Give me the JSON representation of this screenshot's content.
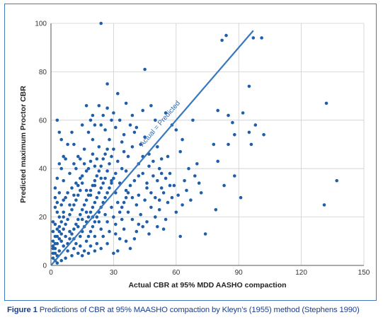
{
  "caption": {
    "label": "Figure 1",
    "text": "Predictions of CBR at 95% MAASHO compaction by Kleyn’s (1955) method (Stephens 1990)"
  },
  "colors": {
    "points": "#1f5ea8",
    "line": "#3a78bd",
    "grid": "#cfcfcf",
    "frame": "#3d7bbf"
  },
  "chart_data": {
    "type": "scatter",
    "title": "",
    "xlabel": "Actual CBR at 95% MDD AASHO compaction",
    "ylabel": "Predicted maximum Proctor CBR",
    "xlim": [
      0,
      150
    ],
    "ylim": [
      0,
      100
    ],
    "xticks": [
      0,
      30,
      60,
      90,
      120,
      150
    ],
    "yticks": [
      0,
      20,
      40,
      60,
      80,
      100
    ],
    "grid": true,
    "reference_line": {
      "label": "Actual = Predicted",
      "x": [
        0,
        97
      ],
      "y": [
        0,
        97
      ]
    },
    "series": [
      {
        "name": "",
        "points": [
          [
            24,
            100
          ],
          [
            45,
            81
          ],
          [
            97,
            94
          ],
          [
            101,
            94
          ],
          [
            82,
            93
          ],
          [
            84,
            95
          ],
          [
            95,
            74
          ],
          [
            80,
            64
          ],
          [
            132,
            67
          ],
          [
            92,
            63
          ],
          [
            85,
            62
          ],
          [
            87,
            59
          ],
          [
            98,
            58
          ],
          [
            95,
            55
          ],
          [
            88,
            54
          ],
          [
            102,
            54
          ],
          [
            85,
            50
          ],
          [
            96,
            50
          ],
          [
            80,
            43
          ],
          [
            78,
            50
          ],
          [
            88,
            37
          ],
          [
            91,
            28
          ],
          [
            131,
            25
          ],
          [
            137,
            35
          ],
          [
            74,
            13
          ],
          [
            62,
            12
          ],
          [
            68,
            60
          ],
          [
            60,
            56
          ],
          [
            63,
            52
          ],
          [
            58,
            58
          ],
          [
            55,
            63
          ],
          [
            62,
            47
          ],
          [
            56,
            45
          ],
          [
            66,
            40
          ],
          [
            70,
            42
          ],
          [
            72,
            30
          ],
          [
            79,
            23
          ],
          [
            83,
            33
          ],
          [
            64,
            35
          ],
          [
            57,
            33
          ],
          [
            53,
            32
          ],
          [
            52,
            23
          ],
          [
            60,
            22
          ],
          [
            50,
            20
          ],
          [
            54,
            15
          ],
          [
            46,
            18
          ],
          [
            41,
            14
          ],
          [
            36,
            10
          ],
          [
            32,
            6
          ],
          [
            33,
            11
          ],
          [
            38,
            7
          ],
          [
            30,
            5
          ],
          [
            44,
            16
          ],
          [
            48,
            24
          ],
          [
            42,
            29
          ],
          [
            46,
            32
          ],
          [
            49,
            37
          ],
          [
            52,
            40
          ],
          [
            47,
            46
          ],
          [
            43,
            50
          ],
          [
            40,
            55
          ],
          [
            38,
            58
          ],
          [
            35,
            54
          ],
          [
            33,
            60
          ],
          [
            30,
            63
          ],
          [
            27,
            65
          ],
          [
            23,
            66
          ],
          [
            20,
            62
          ],
          [
            18,
            55
          ],
          [
            17,
            66
          ],
          [
            27,
            75
          ],
          [
            32,
            71
          ],
          [
            36,
            67
          ],
          [
            39,
            62
          ],
          [
            44,
            64
          ],
          [
            48,
            66
          ],
          [
            50,
            60
          ],
          [
            42,
            42
          ],
          [
            37,
            45
          ],
          [
            34,
            40
          ],
          [
            31,
            38
          ],
          [
            28,
            42
          ],
          [
            26,
            46
          ],
          [
            23,
            49
          ],
          [
            20,
            52
          ],
          [
            16,
            48
          ],
          [
            13,
            45
          ],
          [
            11,
            42
          ],
          [
            9,
            38
          ],
          [
            6,
            35
          ],
          [
            4,
            30
          ],
          [
            3,
            60
          ],
          [
            4,
            55
          ],
          [
            5,
            52
          ],
          [
            6,
            45
          ],
          [
            8,
            50
          ],
          [
            10,
            55
          ],
          [
            12,
            40
          ],
          [
            14,
            36
          ],
          [
            15,
            34
          ],
          [
            17,
            31
          ],
          [
            19,
            29
          ],
          [
            21,
            33
          ],
          [
            24,
            36
          ],
          [
            27,
            39
          ],
          [
            29,
            35
          ],
          [
            33,
            34
          ],
          [
            36,
            31
          ],
          [
            39,
            28
          ],
          [
            41,
            25
          ],
          [
            37,
            22
          ],
          [
            34,
            19
          ],
          [
            31,
            17
          ],
          [
            28,
            14
          ],
          [
            25,
            12
          ],
          [
            22,
            9
          ],
          [
            19,
            8
          ],
          [
            16,
            6
          ],
          [
            13,
            5
          ],
          [
            10,
            4
          ],
          [
            7,
            3
          ],
          [
            5,
            2
          ],
          [
            3,
            1
          ],
          [
            2,
            2
          ],
          [
            1,
            3
          ],
          [
            1,
            5
          ],
          [
            2,
            7
          ],
          [
            3,
            9
          ],
          [
            1,
            10
          ],
          [
            2,
            12
          ],
          [
            1,
            14
          ],
          [
            3,
            15
          ],
          [
            2,
            17
          ],
          [
            1,
            18
          ],
          [
            4,
            20
          ],
          [
            3,
            22
          ],
          [
            2,
            24
          ],
          [
            5,
            25
          ],
          [
            6,
            27
          ],
          [
            4,
            11
          ],
          [
            5,
            13
          ],
          [
            6,
            15
          ],
          [
            7,
            17
          ],
          [
            8,
            19
          ],
          [
            9,
            21
          ],
          [
            10,
            23
          ],
          [
            11,
            25
          ],
          [
            12,
            27
          ],
          [
            13,
            29
          ],
          [
            14,
            31
          ],
          [
            8,
            9
          ],
          [
            9,
            11
          ],
          [
            10,
            13
          ],
          [
            11,
            15
          ],
          [
            12,
            17
          ],
          [
            13,
            19
          ],
          [
            14,
            21
          ],
          [
            15,
            23
          ],
          [
            16,
            25
          ],
          [
            17,
            27
          ],
          [
            18,
            29
          ],
          [
            19,
            31
          ],
          [
            20,
            33
          ],
          [
            21,
            35
          ],
          [
            22,
            37
          ],
          [
            23,
            39
          ],
          [
            24,
            41
          ],
          [
            14,
            12
          ],
          [
            15,
            14
          ],
          [
            16,
            16
          ],
          [
            17,
            18
          ],
          [
            18,
            20
          ],
          [
            19,
            22
          ],
          [
            20,
            24
          ],
          [
            21,
            26
          ],
          [
            22,
            28
          ],
          [
            23,
            30
          ],
          [
            24,
            32
          ],
          [
            25,
            34
          ],
          [
            26,
            36
          ],
          [
            18,
            12
          ],
          [
            19,
            14
          ],
          [
            20,
            16
          ],
          [
            21,
            18
          ],
          [
            22,
            20
          ],
          [
            23,
            22
          ],
          [
            24,
            24
          ],
          [
            25,
            26
          ],
          [
            26,
            28
          ],
          [
            27,
            30
          ],
          [
            28,
            32
          ],
          [
            29,
            34
          ],
          [
            30,
            36
          ],
          [
            31,
            30
          ],
          [
            32,
            26
          ],
          [
            33,
            22
          ],
          [
            34,
            24
          ],
          [
            35,
            26
          ],
          [
            36,
            28
          ],
          [
            37,
            30
          ],
          [
            38,
            33
          ],
          [
            40,
            35
          ],
          [
            42,
            37
          ],
          [
            44,
            38
          ],
          [
            46,
            34
          ],
          [
            48,
            30
          ],
          [
            50,
            28
          ],
          [
            52,
            27
          ],
          [
            54,
            30
          ],
          [
            56,
            26
          ],
          [
            58,
            28
          ],
          [
            55,
            36
          ],
          [
            53,
            44
          ],
          [
            51,
            49
          ],
          [
            45,
            53
          ],
          [
            41,
            57
          ],
          [
            30,
            48
          ],
          [
            28,
            52
          ],
          [
            26,
            56
          ],
          [
            24,
            58
          ],
          [
            22,
            44
          ],
          [
            20,
            46
          ],
          [
            18,
            40
          ],
          [
            16,
            42
          ],
          [
            14,
            44
          ],
          [
            12,
            34
          ],
          [
            10,
            32
          ],
          [
            8,
            30
          ],
          [
            7,
            28
          ],
          [
            6,
            22
          ],
          [
            5,
            18
          ],
          [
            4,
            16
          ],
          [
            3,
            26
          ],
          [
            2,
            28
          ],
          [
            6,
            8
          ],
          [
            8,
            6
          ],
          [
            11,
            7
          ],
          [
            12,
            9
          ],
          [
            14,
            8
          ],
          [
            17,
            10
          ],
          [
            21,
            12
          ],
          [
            24,
            15
          ],
          [
            27,
            18
          ],
          [
            30,
            20
          ],
          [
            29,
            24
          ],
          [
            26,
            21
          ],
          [
            23,
            18
          ],
          [
            20,
            20
          ],
          [
            17,
            22
          ],
          [
            15,
            19
          ],
          [
            13,
            16
          ],
          [
            11,
            11
          ],
          [
            9,
            14
          ],
          [
            7,
            12
          ],
          [
            5,
            10
          ],
          [
            4,
            6
          ],
          [
            3,
            4
          ],
          [
            2,
            5
          ],
          [
            1,
            7
          ],
          [
            1,
            8
          ],
          [
            2,
            9
          ],
          [
            3,
            12
          ],
          [
            4,
            14
          ],
          [
            6,
            20
          ],
          [
            9,
            25
          ],
          [
            11,
            29
          ],
          [
            13,
            33
          ],
          [
            15,
            37
          ],
          [
            17,
            39
          ],
          [
            19,
            43
          ],
          [
            21,
            41
          ],
          [
            25,
            44
          ],
          [
            27,
            48
          ],
          [
            29,
            45
          ],
          [
            32,
            43
          ],
          [
            35,
            47
          ],
          [
            39,
            49
          ],
          [
            44,
            45
          ],
          [
            47,
            41
          ],
          [
            49,
            43
          ],
          [
            51,
            35
          ],
          [
            53,
            38
          ],
          [
            45,
            27
          ],
          [
            43,
            21
          ],
          [
            39,
            19
          ],
          [
            35,
            15
          ],
          [
            31,
            13
          ],
          [
            27,
            9
          ],
          [
            24,
            7
          ],
          [
            21,
            6
          ],
          [
            18,
            5
          ],
          [
            15,
            4
          ],
          [
            40,
            11
          ],
          [
            42,
            17
          ],
          [
            47,
            13
          ],
          [
            51,
            16
          ],
          [
            55,
            19
          ],
          [
            57,
            38
          ],
          [
            59,
            33
          ],
          [
            61,
            29
          ],
          [
            63,
            25
          ],
          [
            65,
            31
          ],
          [
            67,
            27
          ],
          [
            69,
            37
          ],
          [
            71,
            34
          ],
          [
            36,
            39
          ],
          [
            34,
            51
          ],
          [
            31,
            57
          ],
          [
            29,
            60
          ],
          [
            25,
            62
          ],
          [
            21,
            58
          ],
          [
            19,
            60
          ],
          [
            15,
            58
          ],
          [
            11,
            50
          ],
          [
            7,
            44
          ],
          [
            5,
            40
          ],
          [
            3,
            36
          ],
          [
            4,
            42
          ],
          [
            2,
            32
          ]
        ]
      }
    ]
  }
}
